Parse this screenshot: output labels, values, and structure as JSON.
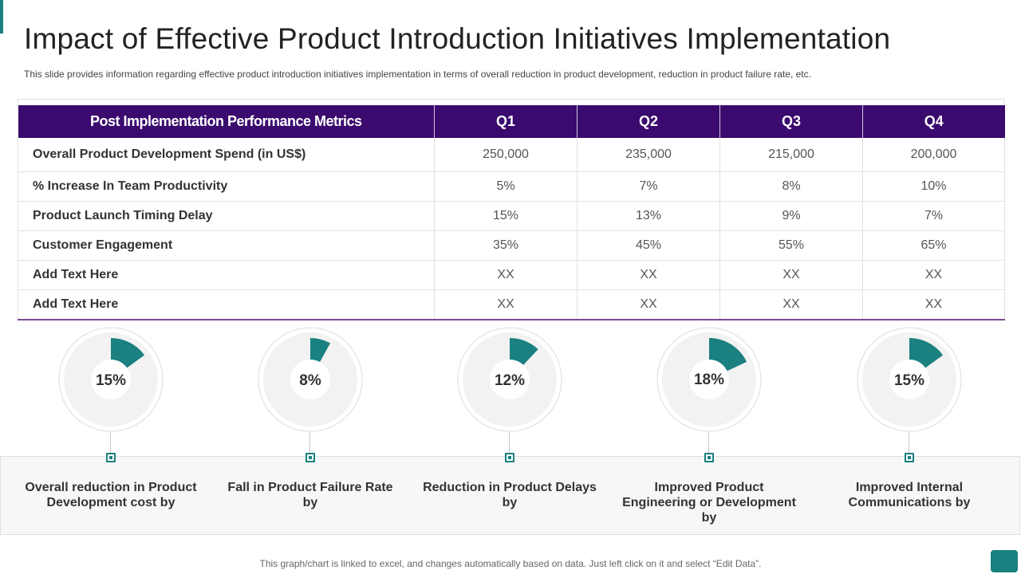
{
  "title": "Impact of Effective Product Introduction Initiatives Implementation",
  "subtitle": "This slide provides information regarding effective product introduction initiatives implementation in terms of overall reduction in product development, reduction in product failure rate, etc.",
  "colors": {
    "accent": "#1a8080",
    "header": "#3a0a6e",
    "ring_track": "#f2f2f2"
  },
  "table": {
    "headers": [
      "Post Implementation Performance Metrics",
      "Q1",
      "Q2",
      "Q3",
      "Q4"
    ],
    "rows": [
      {
        "metric": "Overall Product Development Spend (in US$)",
        "values": [
          "250,000",
          "235,000",
          "215,000",
          "200,000"
        ]
      },
      {
        "metric": "% Increase In Team Productivity",
        "values": [
          "5%",
          "7%",
          "8%",
          "10%"
        ]
      },
      {
        "metric": "Product Launch Timing Delay",
        "values": [
          "15%",
          "13%",
          "9%",
          "7%"
        ]
      },
      {
        "metric": "Customer Engagement",
        "values": [
          "35%",
          "45%",
          "55%",
          "65%"
        ]
      },
      {
        "metric": "Add Text Here",
        "values": [
          "XX",
          "XX",
          "XX",
          "XX"
        ]
      },
      {
        "metric": "Add Text Here",
        "values": [
          "XX",
          "XX",
          "XX",
          "XX"
        ]
      }
    ]
  },
  "kpis": [
    {
      "pct": 15,
      "label": "15%",
      "caption": "Overall reduction in Product Development cost by"
    },
    {
      "pct": 8,
      "label": "8%",
      "caption": "Fall in Product Failure Rate by"
    },
    {
      "pct": 12,
      "label": "12%",
      "caption": "Reduction in Product Delays by"
    },
    {
      "pct": 18,
      "label": "18%",
      "caption": "Improved Product Engineering or Development by"
    },
    {
      "pct": 15,
      "label": "15%",
      "caption": "Improved Internal Communications by"
    }
  ],
  "footer_note": "This graph/chart is linked to excel, and changes automatically based on data. Just left click on it and select “Edit Data”."
}
